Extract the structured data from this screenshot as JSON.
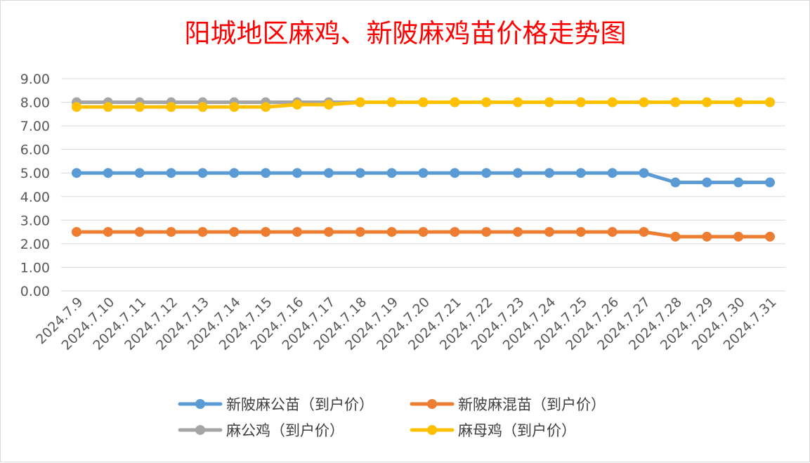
{
  "chart_data": {
    "type": "line",
    "title": "阳城地区麻鸡、新陂麻鸡苗价格走势图",
    "xlabel": "",
    "ylabel": "",
    "ylim": [
      0,
      9
    ],
    "yticks": [
      "0.00",
      "1.00",
      "2.00",
      "3.00",
      "4.00",
      "5.00",
      "6.00",
      "7.00",
      "8.00",
      "9.00"
    ],
    "grid": true,
    "legend_position": "bottom",
    "categories": [
      "2024.7.9",
      "2024.7.10",
      "2024.7.11",
      "2024.7.12",
      "2024.7.13",
      "2024.7.14",
      "2024.7.15",
      "2024.7.16",
      "2024.7.17",
      "2024.7.18",
      "2024.7.19",
      "2024.7.20",
      "2024.7.21",
      "2024.7.22",
      "2024.7.23",
      "2024.7.24",
      "2024.7.25",
      "2024.7.26",
      "2024.7.27",
      "2024.7.28",
      "2024.7.29",
      "2024.7.30",
      "2024.7.31"
    ],
    "series": [
      {
        "name": "新陂麻公苗（到户价）",
        "color": "#5b9bd5",
        "values": [
          5,
          5,
          5,
          5,
          5,
          5,
          5,
          5,
          5,
          5,
          5,
          5,
          5,
          5,
          5,
          5,
          5,
          5,
          5,
          4.6,
          4.6,
          4.6,
          4.6
        ]
      },
      {
        "name": "新陂麻混苗（到户价）",
        "color": "#ed7d31",
        "values": [
          2.5,
          2.5,
          2.5,
          2.5,
          2.5,
          2.5,
          2.5,
          2.5,
          2.5,
          2.5,
          2.5,
          2.5,
          2.5,
          2.5,
          2.5,
          2.5,
          2.5,
          2.5,
          2.5,
          2.3,
          2.3,
          2.3,
          2.3
        ]
      },
      {
        "name": "麻公鸡（到户价）",
        "color": "#a5a5a5",
        "values": [
          8,
          8,
          8,
          8,
          8,
          8,
          8,
          8,
          8,
          8,
          8,
          8,
          8,
          8,
          8,
          8,
          8,
          8,
          8,
          8,
          8,
          8,
          8
        ]
      },
      {
        "name": "麻母鸡（到户价）",
        "color": "#ffc000",
        "values": [
          7.8,
          7.8,
          7.8,
          7.8,
          7.8,
          7.8,
          7.8,
          7.9,
          7.9,
          8,
          8,
          8,
          8,
          8,
          8,
          8,
          8,
          8,
          8,
          8,
          8,
          8,
          8
        ]
      }
    ]
  }
}
